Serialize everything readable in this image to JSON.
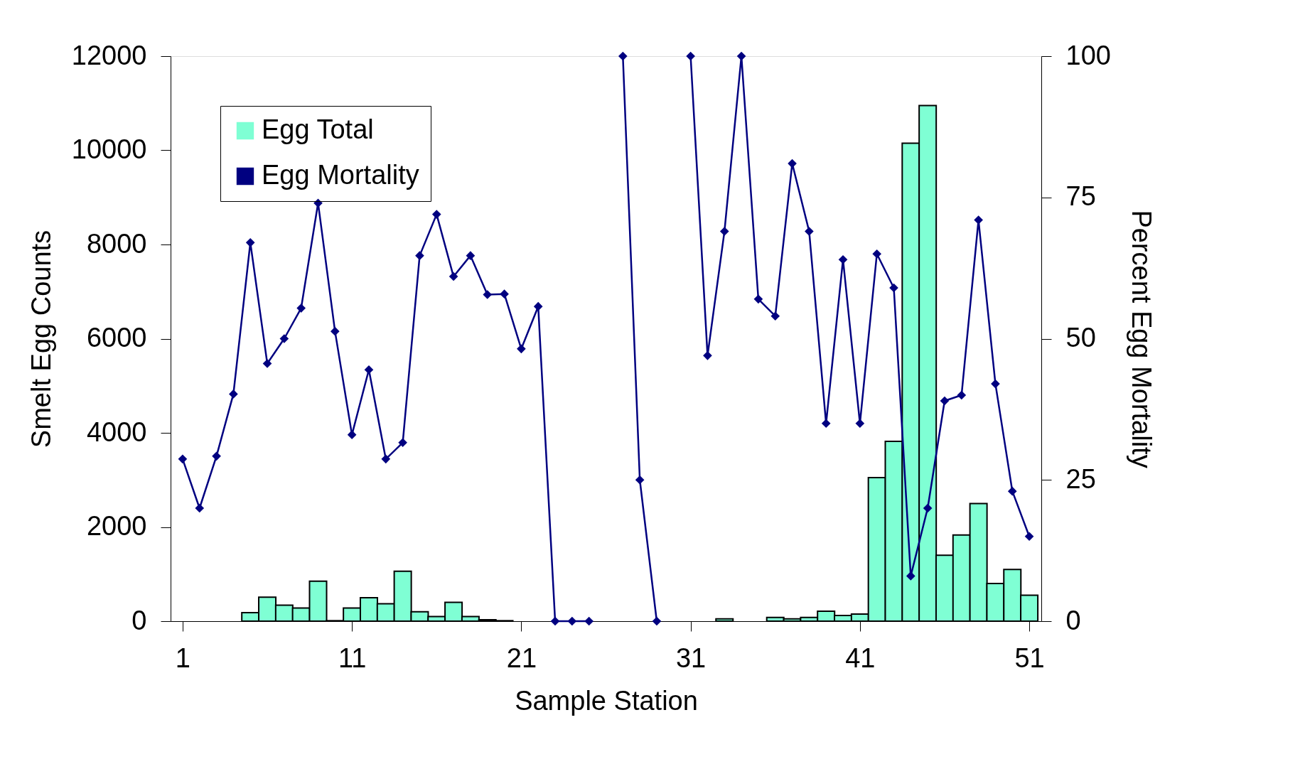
{
  "chart_data": {
    "type": "bar",
    "xlabel": "Sample Station",
    "ylabel": "Smelt Egg Counts",
    "y2label": "Percent Egg Mortality",
    "x": [
      1,
      2,
      3,
      4,
      5,
      6,
      7,
      8,
      9,
      10,
      11,
      12,
      13,
      14,
      15,
      16,
      17,
      18,
      19,
      20,
      21,
      22,
      23,
      24,
      25,
      26,
      27,
      28,
      29,
      30,
      31,
      32,
      33,
      34,
      35,
      36,
      37,
      38,
      39,
      40,
      41,
      42,
      43,
      44,
      45,
      46,
      47,
      48,
      49,
      50,
      51
    ],
    "series": [
      {
        "name": "Egg Total",
        "color": "#7fffd4",
        "values": [
          0,
          0,
          0,
          0,
          180,
          510,
          340,
          280,
          850,
          10,
          280,
          500,
          370,
          1060,
          200,
          100,
          400,
          100,
          30,
          10,
          0,
          0,
          0,
          0,
          0,
          0,
          0,
          0,
          0,
          0,
          0,
          0,
          50,
          0,
          0,
          80,
          50,
          80,
          210,
          120,
          150,
          3050,
          3820,
          10150,
          10950,
          1400,
          1830,
          2500,
          800,
          1100,
          550
        ]
      },
      {
        "name": "Egg Mortality",
        "type": "line",
        "axis": "y2",
        "color": "#000080",
        "marker": "diamond",
        "values": [
          28.7,
          20,
          29.2,
          40.2,
          67,
          45.6,
          50,
          55.4,
          74,
          51.3,
          33,
          44.5,
          28.7,
          31.6,
          64.7,
          72,
          61,
          64.7,
          57.8,
          57.9,
          48.2,
          55.7,
          0,
          0,
          0,
          null,
          100,
          25,
          0,
          null,
          100,
          47,
          69,
          100,
          57,
          54,
          81,
          69,
          35,
          64,
          35,
          65,
          59,
          8,
          20,
          39,
          40,
          71,
          42,
          23,
          15
        ]
      }
    ],
    "xlim": [
      0.5,
      51.5
    ],
    "xticks": [
      1,
      11,
      21,
      31,
      41,
      51
    ],
    "ylim": [
      0,
      12000
    ],
    "yticks": [
      0,
      2000,
      4000,
      6000,
      8000,
      10000,
      12000
    ],
    "y2lim": [
      0,
      100
    ],
    "y2ticks": [
      0,
      25,
      50,
      75,
      100
    ],
    "grid": false,
    "legend": "top left"
  }
}
